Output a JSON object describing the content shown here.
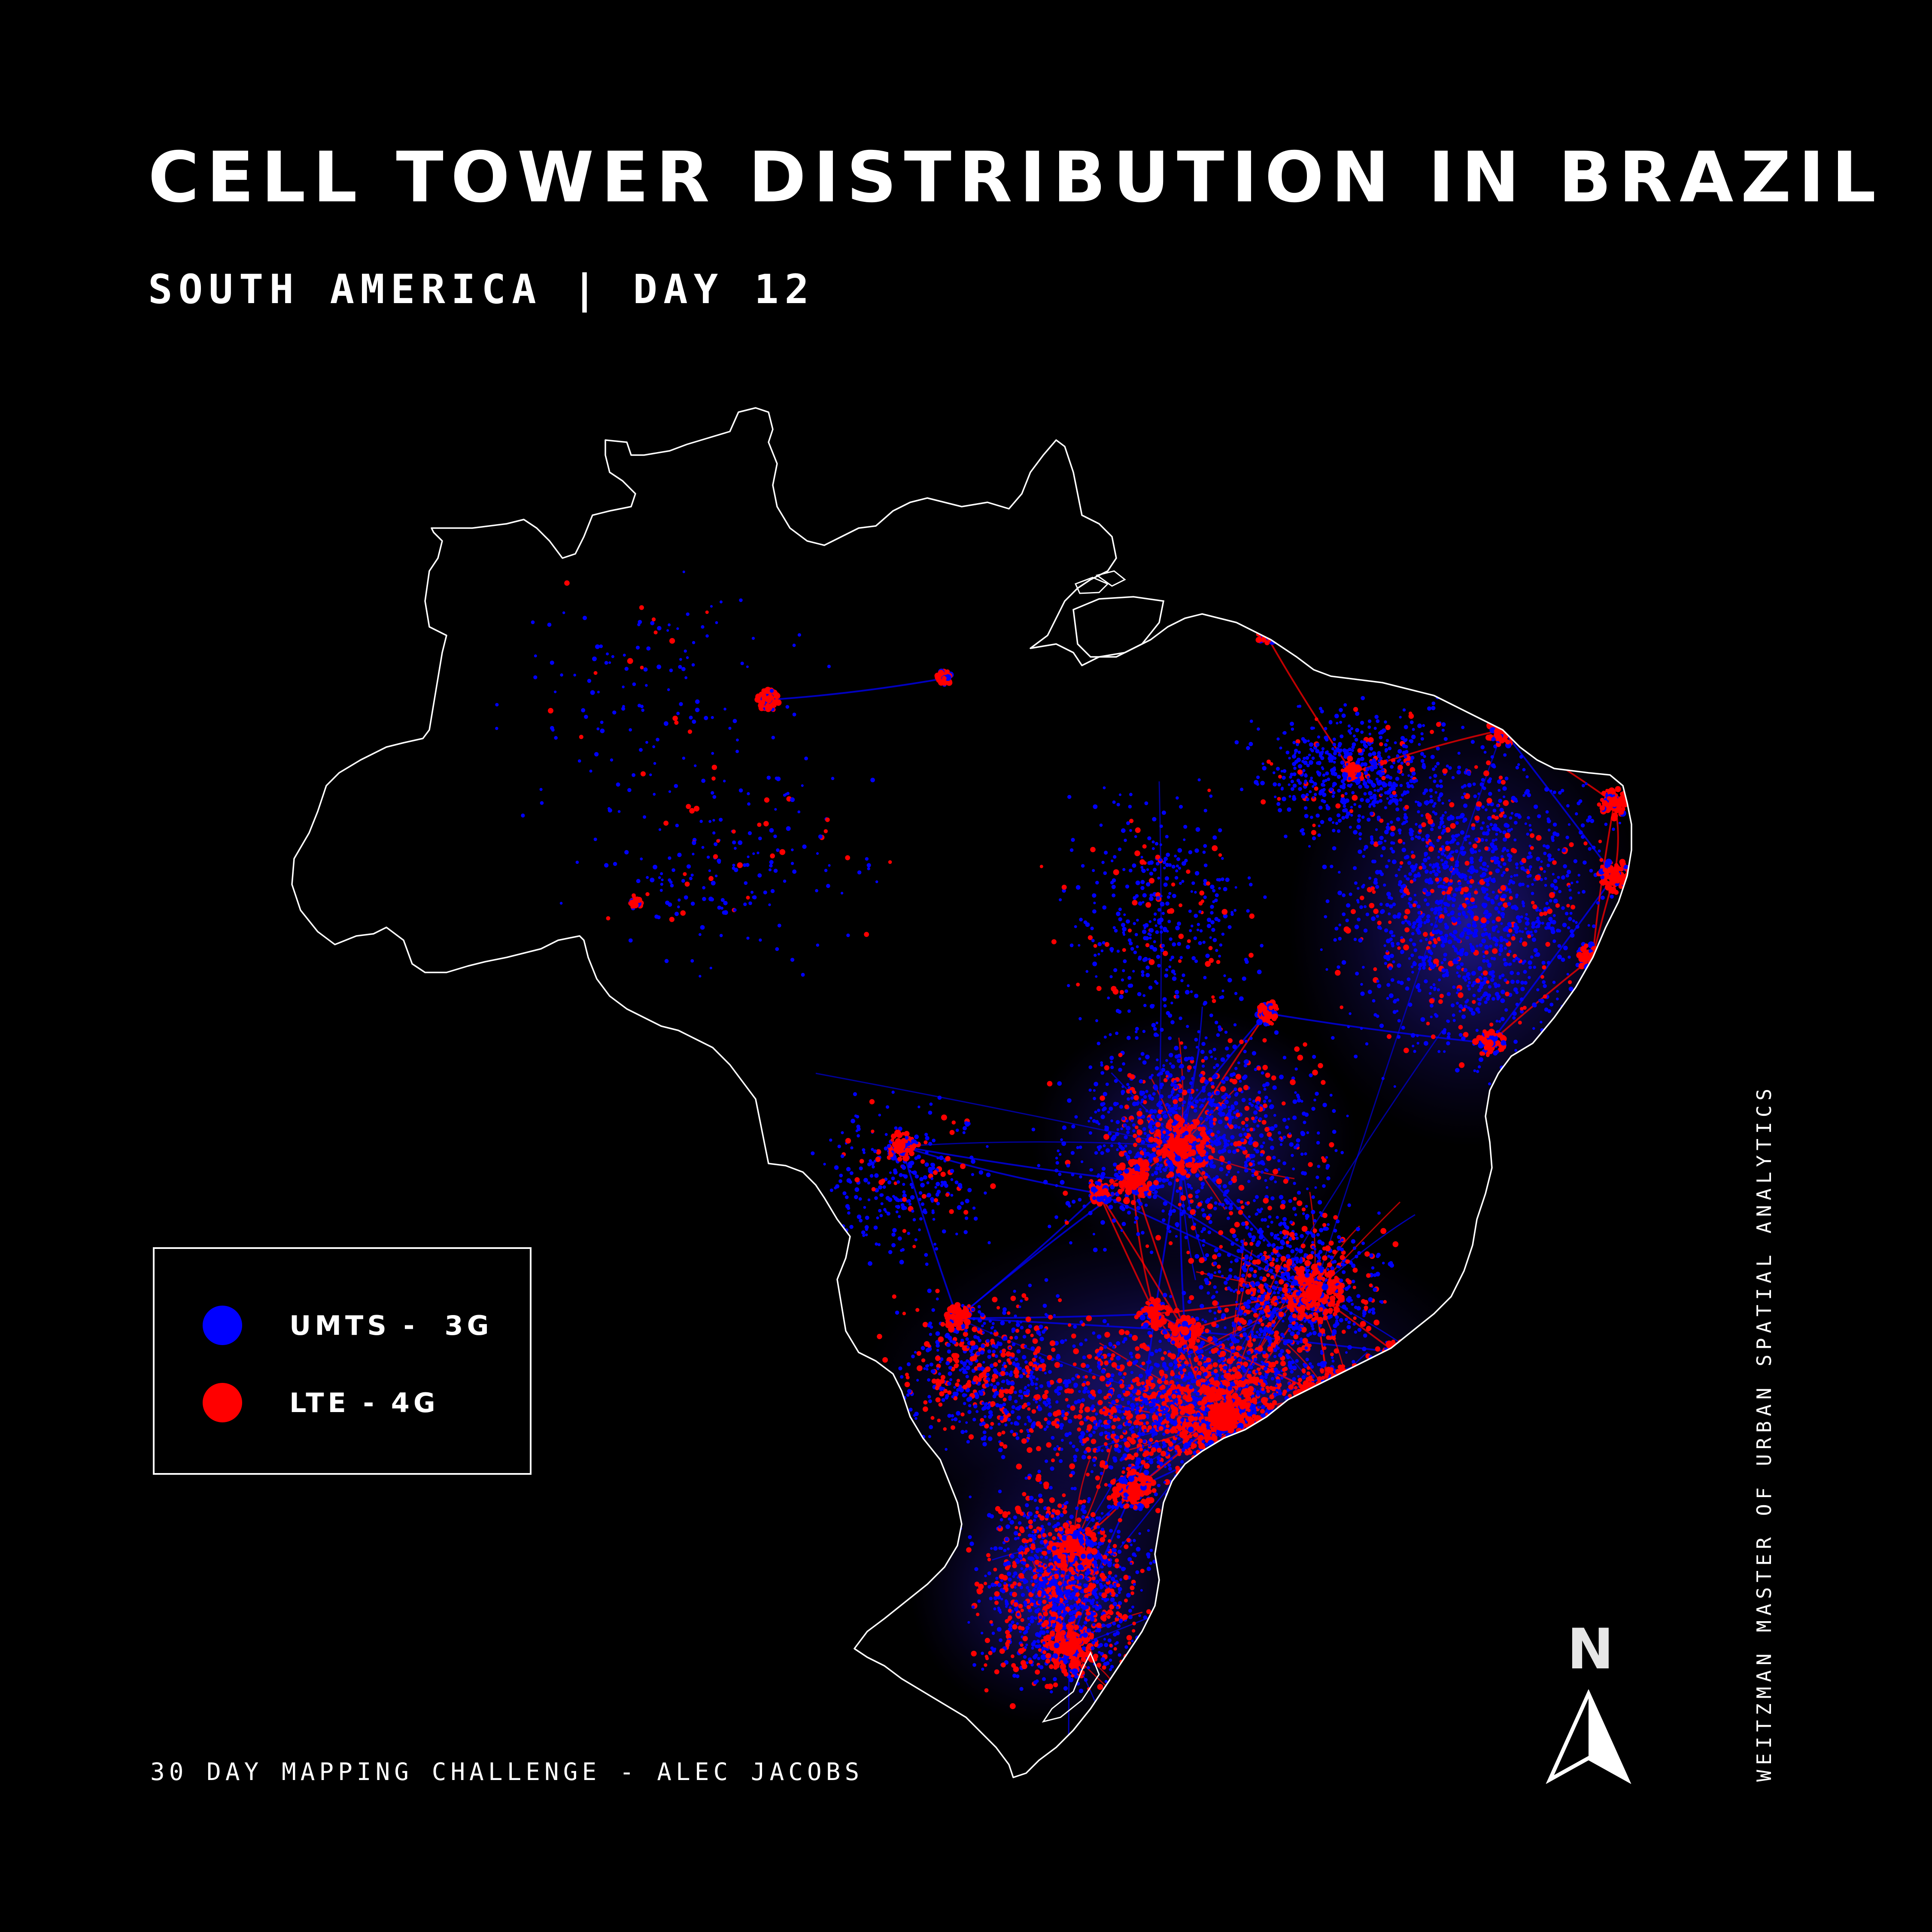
{
  "title": "CELL TOWER DISTRIBUTION IN BRAZIL",
  "subtitle": "SOUTH AMERICA | DAY 12",
  "credit": "30 DAY MAPPING CHALLENGE - ALEC JACOBS",
  "side_text": "WEITZMAN MASTER OF URBAN SPATIAL ANALYTICS",
  "legend": {
    "items": [
      {
        "label": "UMTS -  3G",
        "color": "#0000ff"
      },
      {
        "label": "LTE - 4G",
        "color": "#ff0000"
      }
    ]
  },
  "north_arrow": {
    "letter": "N",
    "icon": "north-arrow-icon"
  },
  "map": {
    "region": "Brazil",
    "background": "#000000",
    "outline_color": "#ffffff",
    "colors": {
      "umts_3g": "#0000ff",
      "lte_4g": "#ff0000"
    }
  }
}
